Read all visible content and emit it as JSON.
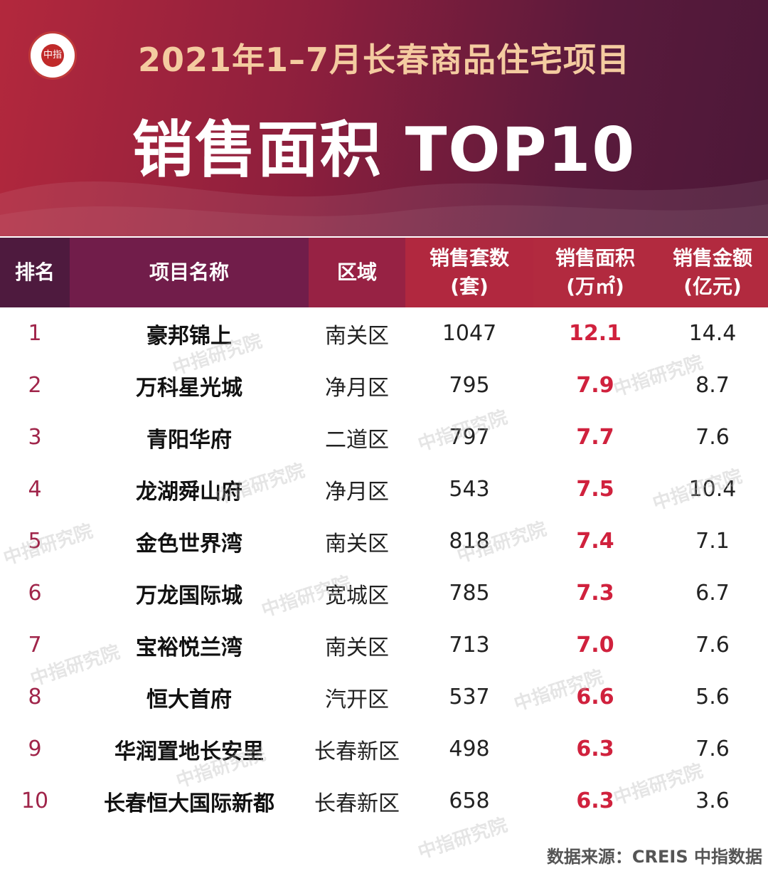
{
  "header": {
    "logo_text": "中指",
    "title_line1": "2021年1–7月长春商品住宅项目",
    "title_line2": "销售面积 TOP10"
  },
  "table": {
    "columns": {
      "rank": "排名",
      "name": "项目名称",
      "area": "区域",
      "units_l1": "销售套数",
      "units_l2": "(套)",
      "sqm_l1": "销售面积",
      "sqm_l2": "(万㎡)",
      "amount_l1": "销售金额",
      "amount_l2": "(亿元)"
    },
    "rows": [
      {
        "rank": "1",
        "name": "豪邦锦上",
        "area": "南关区",
        "units": "1047",
        "sqm": "12.1",
        "amount": "14.4"
      },
      {
        "rank": "2",
        "name": "万科星光城",
        "area": "净月区",
        "units": "795",
        "sqm": "7.9",
        "amount": "8.7"
      },
      {
        "rank": "3",
        "name": "青阳华府",
        "area": "二道区",
        "units": "797",
        "sqm": "7.7",
        "amount": "7.6"
      },
      {
        "rank": "4",
        "name": "龙湖舜山府",
        "area": "净月区",
        "units": "543",
        "sqm": "7.5",
        "amount": "10.4"
      },
      {
        "rank": "5",
        "name": "金色世界湾",
        "area": "南关区",
        "units": "818",
        "sqm": "7.4",
        "amount": "7.1"
      },
      {
        "rank": "6",
        "name": "万龙国际城",
        "area": "宽城区",
        "units": "785",
        "sqm": "7.3",
        "amount": "6.7"
      },
      {
        "rank": "7",
        "name": "宝裕悦兰湾",
        "area": "南关区",
        "units": "713",
        "sqm": "7.0",
        "amount": "7.6"
      },
      {
        "rank": "8",
        "name": "恒大首府",
        "area": "汽开区",
        "units": "537",
        "sqm": "6.6",
        "amount": "5.6"
      },
      {
        "rank": "9",
        "name": "华润置地长安里",
        "area": "长春新区",
        "units": "498",
        "sqm": "6.3",
        "amount": "7.6"
      },
      {
        "rank": "10",
        "name": "长春恒大国际新都",
        "area": "长春新区",
        "units": "658",
        "sqm": "6.3",
        "amount": "3.6"
      }
    ]
  },
  "watermark": "中指研究院",
  "source": "数据来源：CREIS 中指数据",
  "colors": {
    "banner_start": "#b3283d",
    "banner_end": "#4c1838",
    "title_gold": "#f4cba0",
    "highlight_red": "#d0213d",
    "rank_color": "#a0254a"
  }
}
